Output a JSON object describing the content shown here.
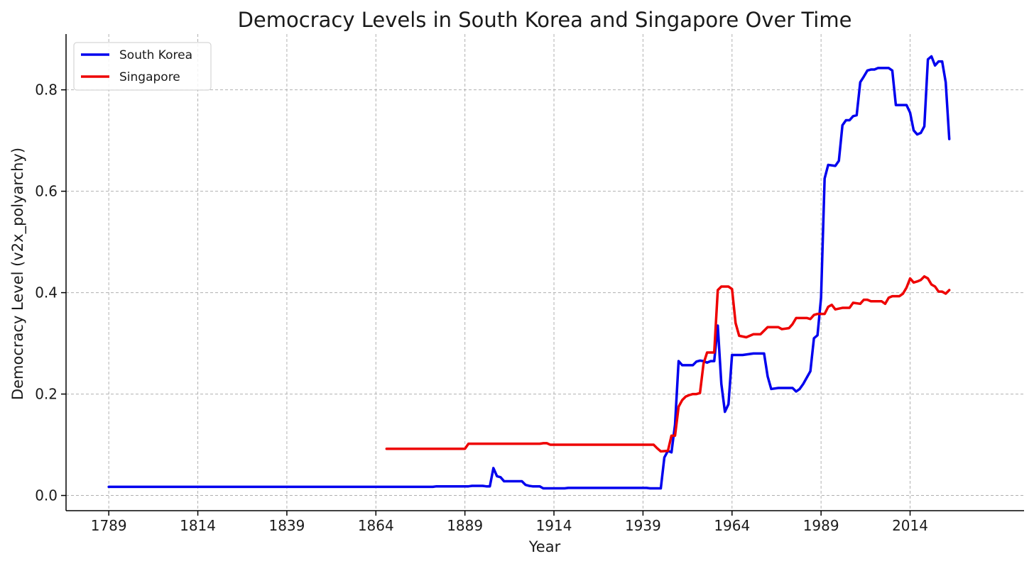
{
  "chart_data": {
    "type": "line",
    "title": "Democracy Levels in South Korea and Singapore Over Time",
    "xlabel": "Year",
    "ylabel": "Democracy Level (v2x_polyarchy)",
    "xlim": [
      1777,
      2046
    ],
    "ylim": [
      -0.03,
      0.91
    ],
    "xticks": [
      1789,
      1814,
      1839,
      1864,
      1889,
      1914,
      1939,
      1964,
      1989,
      2014
    ],
    "yticks": [
      0.0,
      0.2,
      0.4,
      0.6,
      0.8
    ],
    "grid": true,
    "legend": "top-left",
    "series": [
      {
        "name": "South Korea",
        "color": "#0000ee",
        "points": [
          [
            1789,
            0.017
          ],
          [
            1880,
            0.017
          ],
          [
            1881,
            0.018
          ],
          [
            1890,
            0.018
          ],
          [
            1891,
            0.019
          ],
          [
            1894,
            0.019
          ],
          [
            1895,
            0.018
          ],
          [
            1896,
            0.018
          ],
          [
            1897,
            0.054
          ],
          [
            1898,
            0.038
          ],
          [
            1899,
            0.036
          ],
          [
            1900,
            0.028
          ],
          [
            1905,
            0.028
          ],
          [
            1906,
            0.021
          ],
          [
            1907,
            0.019
          ],
          [
            1908,
            0.018
          ],
          [
            1910,
            0.018
          ],
          [
            1911,
            0.014
          ],
          [
            1917,
            0.014
          ],
          [
            1918,
            0.015
          ],
          [
            1940,
            0.015
          ],
          [
            1941,
            0.014
          ],
          [
            1944,
            0.014
          ],
          [
            1945,
            0.075
          ],
          [
            1946,
            0.088
          ],
          [
            1947,
            0.085
          ],
          [
            1948,
            0.14
          ],
          [
            1949,
            0.265
          ],
          [
            1950,
            0.257
          ],
          [
            1953,
            0.257
          ],
          [
            1954,
            0.264
          ],
          [
            1955,
            0.266
          ],
          [
            1956,
            0.265
          ],
          [
            1957,
            0.262
          ],
          [
            1958,
            0.265
          ],
          [
            1959,
            0.265
          ],
          [
            1960,
            0.335
          ],
          [
            1961,
            0.22
          ],
          [
            1962,
            0.165
          ],
          [
            1963,
            0.18
          ],
          [
            1964,
            0.277
          ],
          [
            1967,
            0.277
          ],
          [
            1970,
            0.28
          ],
          [
            1973,
            0.28
          ],
          [
            1974,
            0.235
          ],
          [
            1975,
            0.21
          ],
          [
            1977,
            0.212
          ],
          [
            1981,
            0.212
          ],
          [
            1982,
            0.205
          ],
          [
            1983,
            0.21
          ],
          [
            1984,
            0.22
          ],
          [
            1986,
            0.245
          ],
          [
            1987,
            0.31
          ],
          [
            1988,
            0.316
          ],
          [
            1989,
            0.39
          ],
          [
            1990,
            0.625
          ],
          [
            1991,
            0.652
          ],
          [
            1993,
            0.65
          ],
          [
            1994,
            0.66
          ],
          [
            1995,
            0.73
          ],
          [
            1996,
            0.74
          ],
          [
            1997,
            0.74
          ],
          [
            1998,
            0.748
          ],
          [
            1999,
            0.75
          ],
          [
            2000,
            0.815
          ],
          [
            2001,
            0.826
          ],
          [
            2002,
            0.838
          ],
          [
            2003,
            0.84
          ],
          [
            2004,
            0.84
          ],
          [
            2005,
            0.843
          ],
          [
            2008,
            0.843
          ],
          [
            2009,
            0.838
          ],
          [
            2010,
            0.77
          ],
          [
            2011,
            0.77
          ],
          [
            2012,
            0.77
          ],
          [
            2013,
            0.77
          ],
          [
            2014,
            0.755
          ],
          [
            2015,
            0.72
          ],
          [
            2016,
            0.712
          ],
          [
            2017,
            0.715
          ],
          [
            2018,
            0.728
          ],
          [
            2019,
            0.86
          ],
          [
            2020,
            0.866
          ],
          [
            2021,
            0.848
          ],
          [
            2022,
            0.856
          ],
          [
            2023,
            0.856
          ],
          [
            2024,
            0.815
          ],
          [
            2025,
            0.703
          ]
        ]
      },
      {
        "name": "Singapore",
        "color": "#ee0000",
        "points": [
          [
            1867,
            0.092
          ],
          [
            1889,
            0.092
          ],
          [
            1890,
            0.102
          ],
          [
            1910,
            0.102
          ],
          [
            1911,
            0.103
          ],
          [
            1912,
            0.103
          ],
          [
            1913,
            0.1
          ],
          [
            1942,
            0.1
          ],
          [
            1943,
            0.093
          ],
          [
            1944,
            0.087
          ],
          [
            1946,
            0.088
          ],
          [
            1947,
            0.118
          ],
          [
            1948,
            0.118
          ],
          [
            1949,
            0.175
          ],
          [
            1950,
            0.188
          ],
          [
            1951,
            0.195
          ],
          [
            1952,
            0.198
          ],
          [
            1953,
            0.2
          ],
          [
            1954,
            0.2
          ],
          [
            1955,
            0.202
          ],
          [
            1956,
            0.26
          ],
          [
            1957,
            0.282
          ],
          [
            1959,
            0.282
          ],
          [
            1960,
            0.405
          ],
          [
            1961,
            0.412
          ],
          [
            1963,
            0.412
          ],
          [
            1964,
            0.407
          ],
          [
            1965,
            0.34
          ],
          [
            1966,
            0.315
          ],
          [
            1968,
            0.312
          ],
          [
            1969,
            0.315
          ],
          [
            1970,
            0.318
          ],
          [
            1972,
            0.318
          ],
          [
            1973,
            0.325
          ],
          [
            1974,
            0.332
          ],
          [
            1977,
            0.332
          ],
          [
            1978,
            0.328
          ],
          [
            1980,
            0.33
          ],
          [
            1981,
            0.338
          ],
          [
            1982,
            0.35
          ],
          [
            1985,
            0.35
          ],
          [
            1986,
            0.348
          ],
          [
            1987,
            0.356
          ],
          [
            1988,
            0.358
          ],
          [
            1990,
            0.358
          ],
          [
            1991,
            0.372
          ],
          [
            1992,
            0.376
          ],
          [
            1993,
            0.367
          ],
          [
            1995,
            0.37
          ],
          [
            1997,
            0.37
          ],
          [
            1998,
            0.38
          ],
          [
            2000,
            0.378
          ],
          [
            2001,
            0.386
          ],
          [
            2002,
            0.386
          ],
          [
            2003,
            0.383
          ],
          [
            2006,
            0.383
          ],
          [
            2007,
            0.378
          ],
          [
            2008,
            0.39
          ],
          [
            2009,
            0.393
          ],
          [
            2011,
            0.393
          ],
          [
            2012,
            0.398
          ],
          [
            2013,
            0.41
          ],
          [
            2014,
            0.428
          ],
          [
            2015,
            0.42
          ],
          [
            2016,
            0.422
          ],
          [
            2017,
            0.425
          ],
          [
            2018,
            0.432
          ],
          [
            2019,
            0.428
          ],
          [
            2020,
            0.416
          ],
          [
            2021,
            0.412
          ],
          [
            2022,
            0.402
          ],
          [
            2023,
            0.402
          ],
          [
            2024,
            0.398
          ],
          [
            2025,
            0.405
          ]
        ]
      }
    ]
  }
}
